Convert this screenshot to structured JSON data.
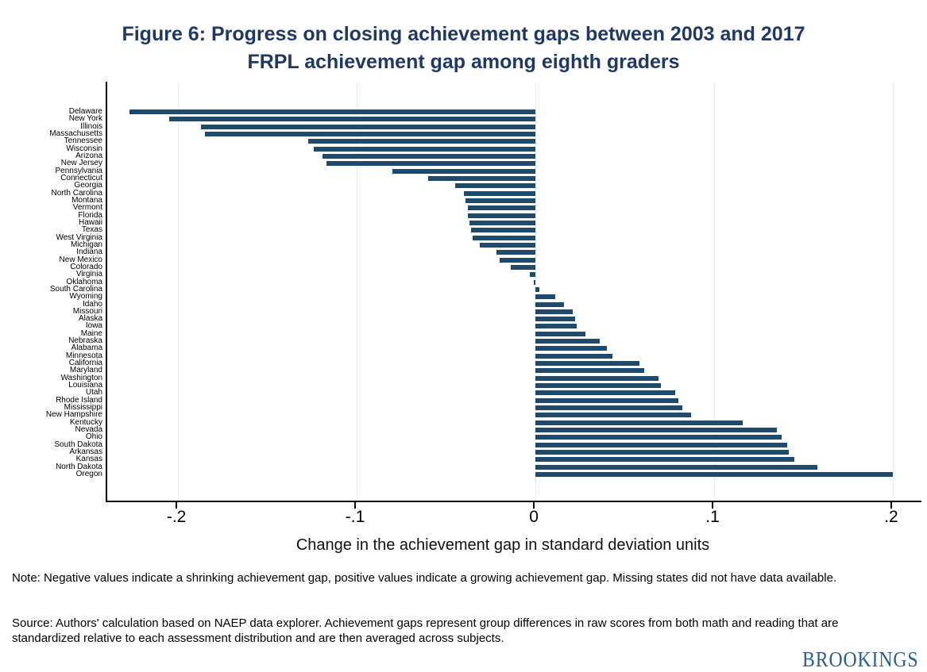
{
  "figure": {
    "title_line1": "Figure 6: Progress on closing achievement gaps between 2003 and 2017",
    "title_line2": "FRPL achievement gap among eighth graders",
    "note": "Note: Negative values indicate a shrinking achievement gap, positive values indicate a growing achievement gap. Missing states did not have data available.",
    "source": "Source: Authors' calculation based on NAEP data explorer. Achievement gaps represent group differences in raw scores from both math and reading that are standardized relative to each assessment distribution and are then averaged across subjects.",
    "brand": "BROOKINGS"
  },
  "colors": {
    "title": "#1f3864",
    "bar": "#1d4a6d",
    "grid": "#e7eff2",
    "axis": "#000000",
    "brand": "#2b5d8f"
  },
  "chart_data": {
    "type": "bar",
    "orientation": "horizontal",
    "title": "Figure 6: Progress on closing achievement gaps between 2003 and 2017 — FRPL achievement gap among eighth graders",
    "xlabel": "Change in the achievement gap in standard deviation units",
    "ylabel": "",
    "grid": true,
    "xlim": [
      -0.2396,
      0.2169
    ],
    "x_tick_labels": [
      "-.2",
      "-.1",
      "0",
      ".1",
      ".2"
    ],
    "x_tick_values": [
      -0.2,
      -0.1,
      0,
      0.1,
      0.2
    ],
    "categories": [
      "Delaware",
      "New York",
      "Illinois",
      "Massachusetts",
      "Tennessee",
      "Wisconsin",
      "Arizona",
      "New Jersey",
      "Pennsylvania",
      "Connecticut",
      "Georgia",
      "North Carolina",
      "Montana",
      "Vermont",
      "Florida",
      "Hawaii",
      "Texas",
      "West Virginia",
      "Michigan",
      "Indiana",
      "New Mexico",
      "Colorado",
      "Virginia",
      "Oklahoma",
      "South Carolina",
      "Wyoming",
      "Idaho",
      "Missouri",
      "Alaska",
      "Iowa",
      "Maine",
      "Nebraska",
      "Alabama",
      "Minnesota",
      "California",
      "Maryland",
      "Washington",
      "Louisiana",
      "Utah",
      "Rhode Island",
      "Mississippi",
      "New Hampshire",
      "Kentucky",
      "Nevada",
      "Ohio",
      "South Dakota",
      "Arkansas",
      "Kansas",
      "North Dakota",
      "Oregon"
    ],
    "values": [
      -0.227,
      -0.205,
      -0.187,
      -0.185,
      -0.127,
      -0.124,
      -0.119,
      -0.117,
      -0.08,
      -0.06,
      -0.045,
      -0.04,
      -0.039,
      -0.038,
      -0.038,
      -0.037,
      -0.036,
      -0.035,
      -0.031,
      -0.022,
      -0.02,
      -0.014,
      -0.003,
      -0.001,
      0.002,
      0.011,
      0.016,
      0.021,
      0.022,
      0.023,
      0.028,
      0.036,
      0.04,
      0.043,
      0.058,
      0.061,
      0.069,
      0.07,
      0.078,
      0.08,
      0.082,
      0.087,
      0.116,
      0.135,
      0.138,
      0.141,
      0.142,
      0.145,
      0.158,
      0.2
    ]
  }
}
